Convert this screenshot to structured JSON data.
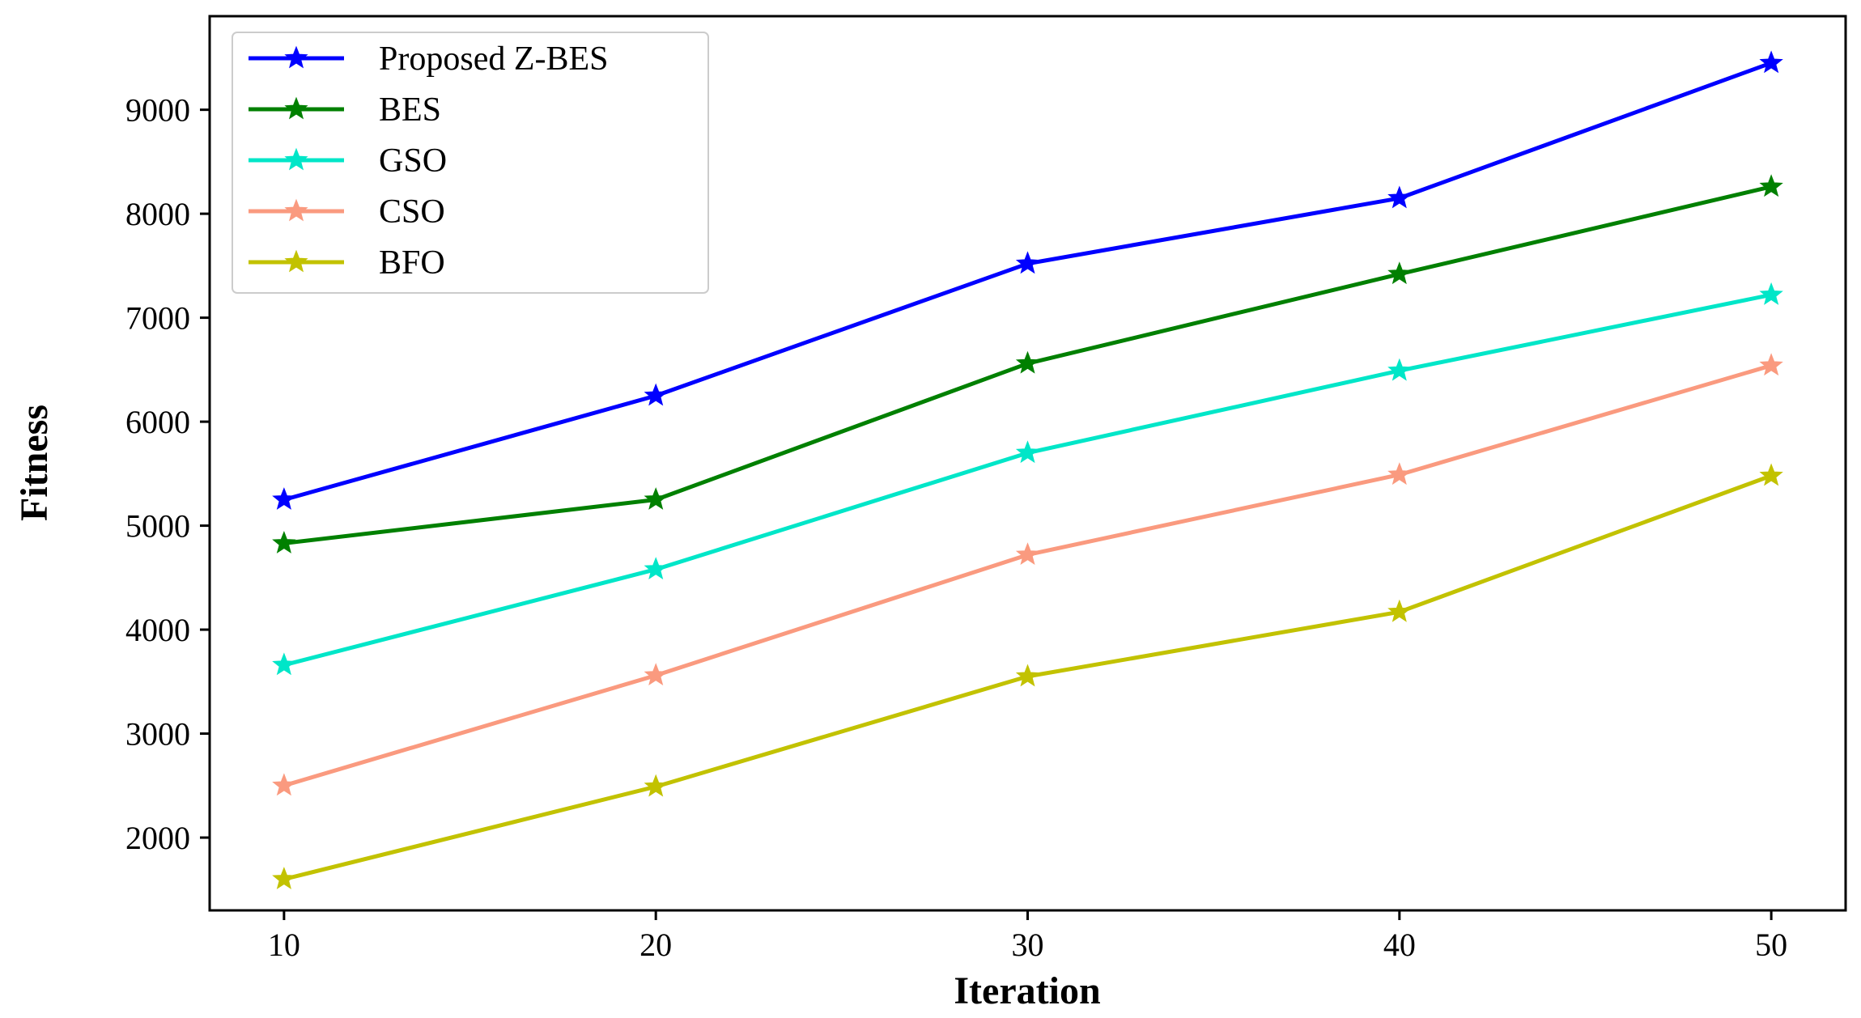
{
  "chart_data": {
    "type": "line",
    "title": "",
    "xlabel": "Iteration",
    "ylabel": "Fitness",
    "x": [
      10,
      20,
      30,
      40,
      50
    ],
    "xticks": [
      "10",
      "20",
      "30",
      "40",
      "50"
    ],
    "yticks": [
      "2000",
      "3000",
      "4000",
      "5000",
      "6000",
      "7000",
      "8000",
      "9000"
    ],
    "xlim": [
      8,
      52
    ],
    "ylim": [
      1300,
      9900
    ],
    "grid": false,
    "legend_position": "top-left",
    "marker": "star",
    "series": [
      {
        "name": "Proposed Z-BES",
        "color": "#0000ff",
        "values": [
          5250,
          6250,
          7520,
          8150,
          9450
        ]
      },
      {
        "name": "BES",
        "color": "#008000",
        "values": [
          4830,
          5250,
          6560,
          7420,
          8260
        ]
      },
      {
        "name": "GSO",
        "color": "#00e6c8",
        "values": [
          3660,
          4580,
          5700,
          6490,
          7220
        ]
      },
      {
        "name": "CSO",
        "color": "#fa9a7f",
        "values": [
          2500,
          3560,
          4720,
          5490,
          6540
        ]
      },
      {
        "name": "BFO",
        "color": "#c2c200",
        "values": [
          1600,
          2490,
          3550,
          4170,
          5480
        ]
      }
    ]
  }
}
